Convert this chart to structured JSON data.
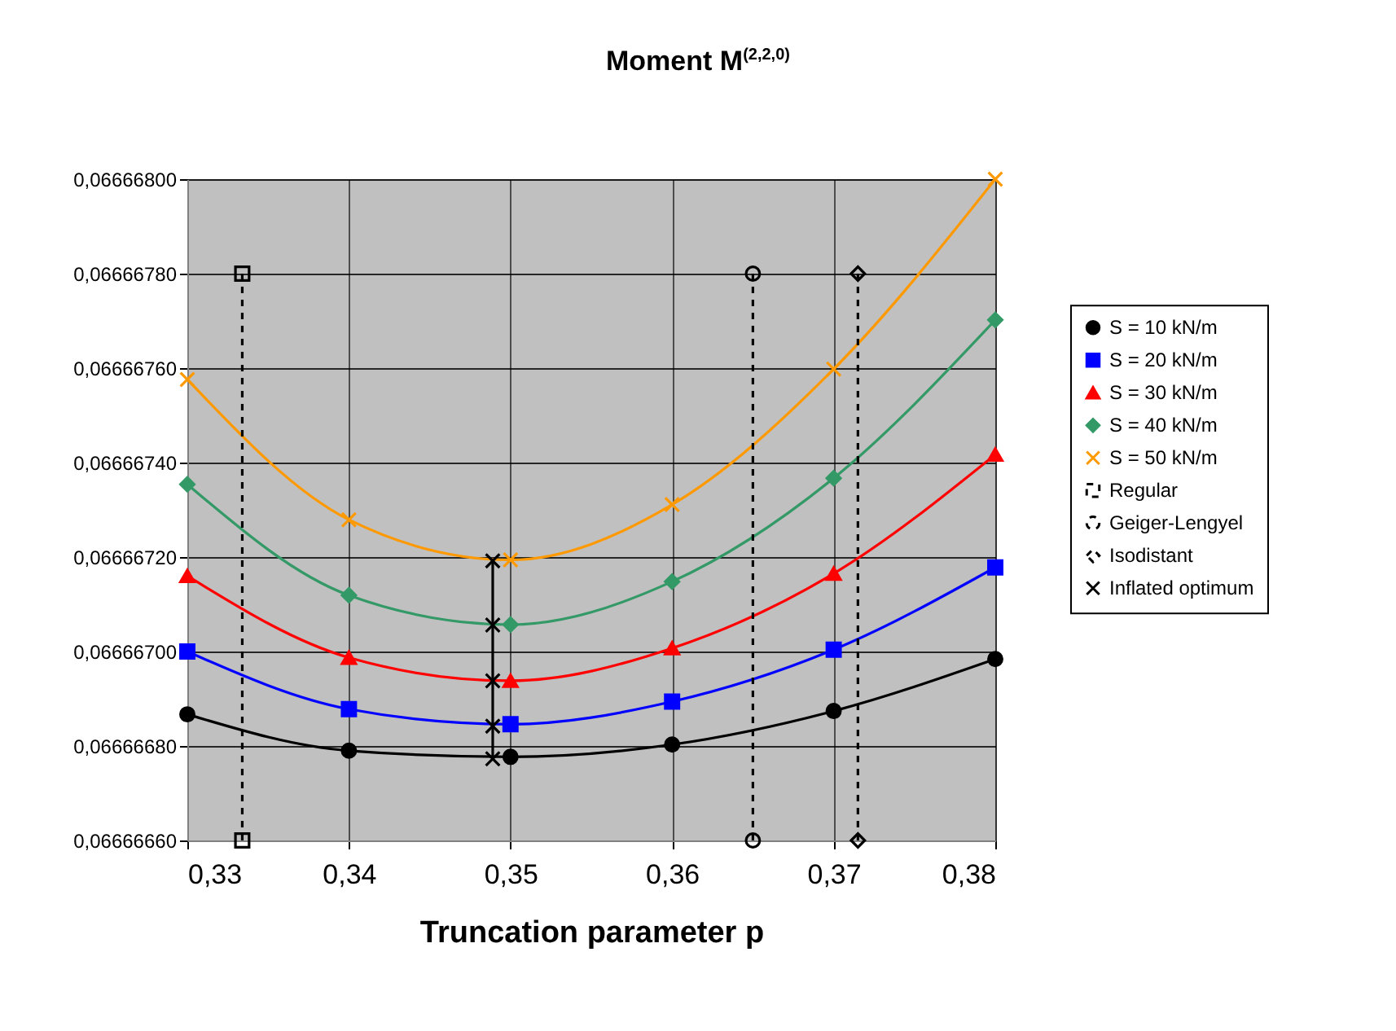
{
  "chart_data": {
    "type": "line",
    "title": "Moment M$^{(2,2,0)}$",
    "xlabel": "Truncation parameter p",
    "xlim": [
      0.33,
      0.38
    ],
    "xticks": [
      {
        "value": 0.33,
        "label": "0,33"
      },
      {
        "value": 0.34,
        "label": "0,34"
      },
      {
        "value": 0.35,
        "label": "0,35"
      },
      {
        "value": 0.36,
        "label": "0,36"
      },
      {
        "value": 0.37,
        "label": "0,37"
      },
      {
        "value": 0.38,
        "label": "0,38"
      }
    ],
    "ylim": [
      0.0666666,
      0.066668
    ],
    "yticks": [
      {
        "value": 0.0666666,
        "label": "0,06666660"
      },
      {
        "value": 0.0666668,
        "label": "0,06666680"
      },
      {
        "value": 0.066667,
        "label": "0,06666700"
      },
      {
        "value": 0.0666672,
        "label": "0,06666720"
      },
      {
        "value": 0.0666674,
        "label": "0,06666740"
      },
      {
        "value": 0.0666676,
        "label": "0,06666760"
      },
      {
        "value": 0.0666678,
        "label": "0,06666780"
      },
      {
        "value": 0.066668,
        "label": "0,06666800"
      }
    ],
    "grid": true,
    "legend": "right",
    "series": [
      {
        "name": "S = 10 kN/m",
        "color": "#000000",
        "marker": "circle",
        "line_style": "solid",
        "x": [
          0.33,
          0.34,
          0.35,
          0.36,
          0.37,
          0.38
        ],
        "values": [
          0.066666867,
          0.06666679,
          0.066666777,
          0.066666803,
          0.066666874,
          0.066666984
        ]
      },
      {
        "name": "S = 20 kN/m",
        "color": "#0000ff",
        "marker": "square",
        "line_style": "solid",
        "x": [
          0.33,
          0.34,
          0.35,
          0.36,
          0.37,
          0.38
        ],
        "values": [
          0.066667,
          0.066666878,
          0.066666846,
          0.066666894,
          0.066667004,
          0.066667178
        ]
      },
      {
        "name": "S = 30 kN/m",
        "color": "#ff0000",
        "marker": "triangle",
        "line_style": "solid",
        "x": [
          0.33,
          0.34,
          0.35,
          0.36,
          0.37,
          0.38
        ],
        "values": [
          0.06666716,
          0.066666987,
          0.066666938,
          0.066667007,
          0.066667165,
          0.066667417
        ]
      },
      {
        "name": "S = 40 kN/m",
        "color": "#339966",
        "marker": "diamond",
        "line_style": "solid",
        "x": [
          0.33,
          0.34,
          0.35,
          0.36,
          0.37,
          0.38
        ],
        "values": [
          0.066667354,
          0.066667119,
          0.066667057,
          0.066667148,
          0.066667367,
          0.066667702
        ]
      },
      {
        "name": "S = 50 kN/m",
        "color": "#ff9900",
        "marker": "cross",
        "line_style": "solid",
        "x": [
          0.33,
          0.34,
          0.35,
          0.36,
          0.37,
          0.38
        ],
        "values": [
          0.066667576,
          0.066667279,
          0.066667194,
          0.066667311,
          0.066667598,
          0.066668
        ]
      },
      {
        "name": "Regular",
        "color": "#000000",
        "marker": "square",
        "line_style": "dashed",
        "x": [
          0.3334,
          0.3334
        ],
        "values": [
          0.0666678,
          0.0666666
        ]
      },
      {
        "name": "Geiger-Lengyel",
        "color": "#000000",
        "marker": "circle",
        "line_style": "dashed",
        "x": [
          0.365,
          0.365
        ],
        "values": [
          0.0666678,
          0.0666666
        ]
      },
      {
        "name": "Isodistant",
        "color": "#000000",
        "marker": "diamond",
        "line_style": "dashed",
        "x": [
          0.3715,
          0.3715
        ],
        "values": [
          0.0666678,
          0.0666666
        ]
      },
      {
        "name": "Inflated optimum",
        "color": "#000000",
        "marker": "cross",
        "line_style": "solid",
        "x": [
          0.3489,
          0.3489,
          0.3489,
          0.3489,
          0.3489
        ],
        "values": [
          0.066667192,
          0.066667056,
          0.066666938,
          0.066666842,
          0.066666773
        ]
      }
    ]
  }
}
